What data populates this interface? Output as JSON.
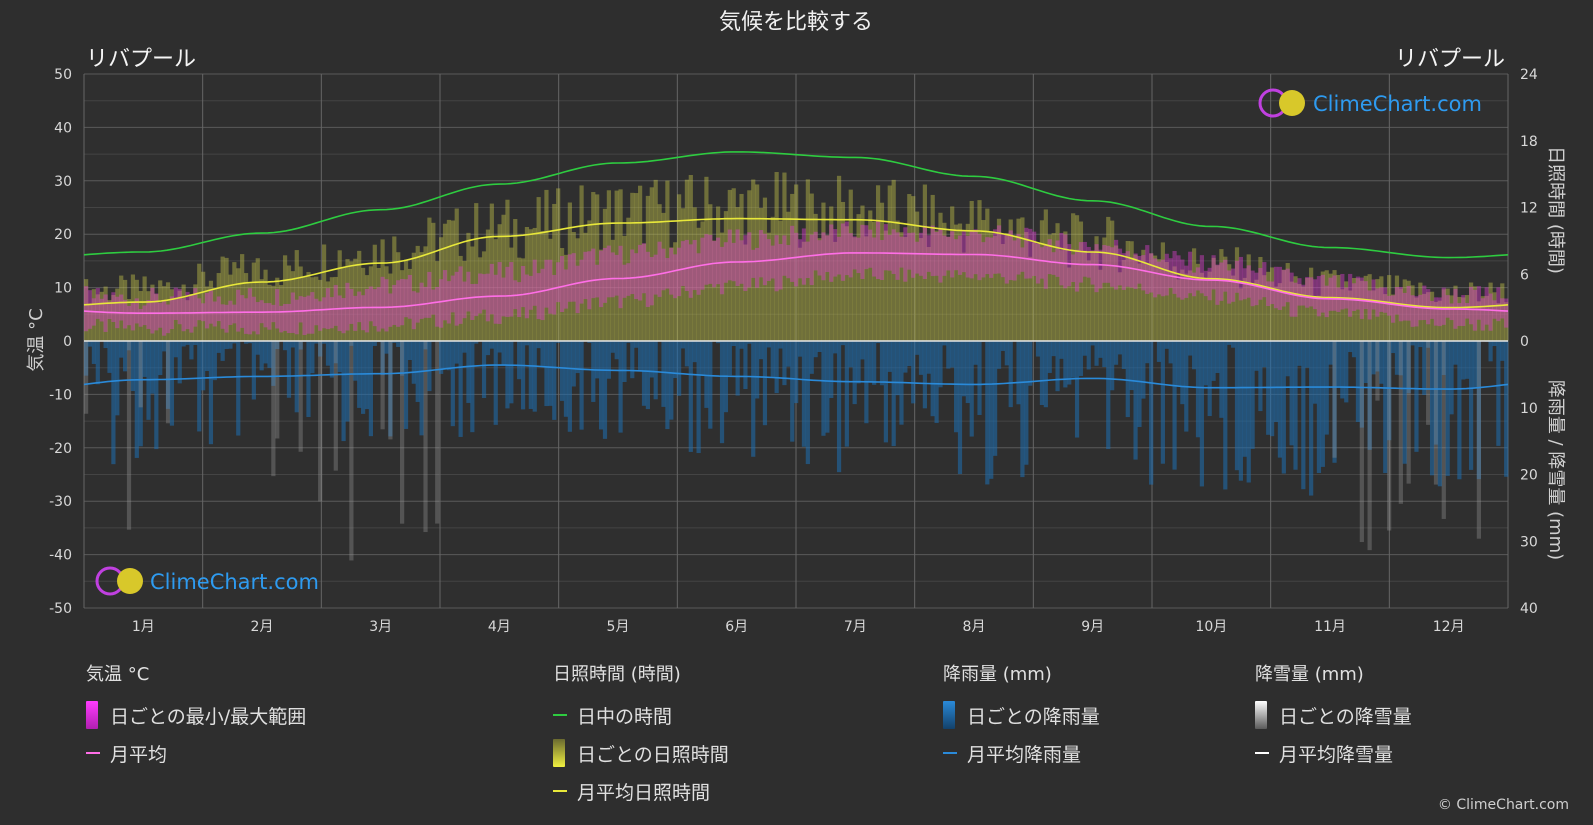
{
  "page": {
    "title": "気候を比較する",
    "location_left": "リバプール",
    "location_right": "リバプール",
    "copyright": "© ClimeChart.com",
    "watermark": "ClimeChart.com"
  },
  "legend": {
    "temperature": {
      "title": "気温 °C",
      "range_label": "日ごとの最小/最大範囲",
      "avg_label": "月平均"
    },
    "sunshine": {
      "title": "日照時間 (時間)",
      "daylight_label": "日中の時間",
      "daily_label": "日ごとの日照時間",
      "avg_label": "月平均日照時間"
    },
    "rain": {
      "title": "降雨量 (mm)",
      "daily_label": "日ごとの降雨量",
      "avg_label": "月平均降雨量"
    },
    "snow": {
      "title": "降雪量 (mm)",
      "daily_label": "日ごとの降雪量",
      "avg_label": "月平均降雪量"
    }
  },
  "colors": {
    "daylight": "#2ecc40",
    "sunshine_avg": "#e8e83a",
    "temp_avg": "#ff6ee7",
    "rain_avg": "#2a8ad9",
    "temp_range": "#d63fc9",
    "sunshine_bar": "#c8c84a",
    "rain_bar": "#1d6fb3",
    "snow_bar": "#9a9a9a"
  },
  "chart_data": {
    "type": "line",
    "months": [
      "1月",
      "2月",
      "3月",
      "4月",
      "5月",
      "6月",
      "7月",
      "8月",
      "9月",
      "10月",
      "11月",
      "12月"
    ],
    "y_left": {
      "label": "気温 °C",
      "ticks": [
        50,
        40,
        30,
        20,
        10,
        0,
        -10,
        -20,
        -30,
        -40,
        -50
      ],
      "range": [
        -50,
        50
      ]
    },
    "y_right_top": {
      "label": "日照時間 (時間)",
      "ticks": [
        24,
        18,
        12,
        6,
        0
      ],
      "range": [
        0,
        24
      ]
    },
    "y_right_bottom": {
      "label": "降雨量 / 降雪量 (mm)",
      "ticks": [
        0,
        10,
        20,
        30,
        40
      ],
      "range": [
        0,
        40
      ]
    },
    "series": [
      {
        "name": "日中の時間",
        "axis": "sunshine",
        "values": [
          8.0,
          9.7,
          11.8,
          14.1,
          16.0,
          17.0,
          16.5,
          14.8,
          12.6,
          10.3,
          8.4,
          7.5
        ]
      },
      {
        "name": "月平均日照時間",
        "axis": "sunshine",
        "values": [
          3.5,
          5.3,
          7.0,
          9.4,
          10.6,
          11.0,
          10.9,
          9.9,
          8.0,
          5.6,
          3.9,
          3.0
        ]
      },
      {
        "name": "月平均",
        "axis": "temperature",
        "values": [
          5.2,
          5.4,
          6.3,
          8.4,
          11.7,
          14.8,
          16.5,
          16.2,
          14.3,
          11.4,
          7.9,
          6.0
        ]
      },
      {
        "name": "月平均降雨量",
        "axis": "rain",
        "values": [
          5.8,
          5.3,
          4.9,
          3.6,
          4.4,
          5.3,
          6.1,
          6.5,
          5.6,
          7.0,
          6.9,
          7.2
        ]
      }
    ],
    "daily_ranges": {
      "temp_min": [
        2.5,
        2.4,
        3.0,
        4.6,
        7.4,
        10.3,
        12.3,
        12.2,
        10.6,
        8.2,
        5.0,
        3.2
      ],
      "temp_max": [
        8.0,
        8.4,
        10.3,
        12.8,
        16.2,
        19.0,
        20.5,
        20.1,
        18.0,
        14.5,
        10.8,
        8.6
      ],
      "sunshine_max": [
        6.0,
        8.2,
        10.6,
        13.0,
        14.8,
        15.5,
        15.0,
        13.6,
        11.4,
        8.7,
        6.6,
        5.5
      ],
      "rain_max": [
        18,
        20,
        16,
        14,
        16,
        18,
        20,
        22,
        20,
        24,
        24,
        24
      ]
    }
  }
}
